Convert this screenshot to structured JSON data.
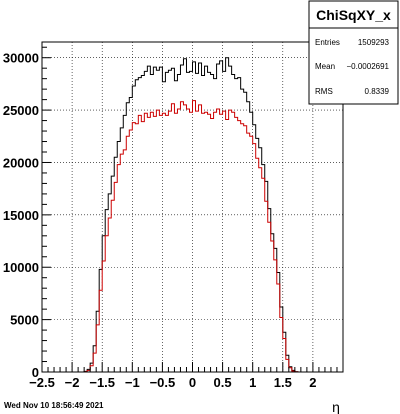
{
  "chart_data": {
    "type": "histogram",
    "xlim": [
      -2.5,
      2.5
    ],
    "ylim": [
      0,
      31500
    ],
    "x_ticks": [
      -2.5,
      -2,
      -1.5,
      -1,
      -0.5,
      0,
      0.5,
      1,
      1.5,
      2
    ],
    "x_tick_labels": [
      "−2.5",
      "−2",
      "−1.5",
      "−1",
      "−0.5",
      "0",
      "0.5",
      "1",
      "1.5",
      "2"
    ],
    "y_ticks": [
      0,
      5000,
      10000,
      15000,
      20000,
      25000,
      30000
    ],
    "y_tick_labels": [
      "0",
      "5000",
      "10000",
      "15000",
      "20000",
      "25000",
      "30000"
    ],
    "xlabel": "η",
    "ylabel": "",
    "grid": true,
    "bin_width": 0.05,
    "series": [
      {
        "color": "#000000",
        "x": [
          -2.475,
          -2.425,
          -2.375,
          -2.325,
          -2.275,
          -2.225,
          -2.175,
          -2.125,
          -2.075,
          -2.025,
          -1.975,
          -1.925,
          -1.875,
          -1.825,
          -1.775,
          -1.725,
          -1.675,
          -1.625,
          -1.575,
          -1.525,
          -1.475,
          -1.425,
          -1.375,
          -1.325,
          -1.275,
          -1.225,
          -1.175,
          -1.125,
          -1.075,
          -1.025,
          -0.975,
          -0.925,
          -0.875,
          -0.825,
          -0.775,
          -0.725,
          -0.675,
          -0.625,
          -0.575,
          -0.525,
          -0.475,
          -0.425,
          -0.375,
          -0.325,
          -0.275,
          -0.225,
          -0.175,
          -0.125,
          -0.075,
          -0.025,
          0.025,
          0.075,
          0.125,
          0.175,
          0.225,
          0.275,
          0.325,
          0.375,
          0.425,
          0.475,
          0.525,
          0.575,
          0.625,
          0.675,
          0.725,
          0.775,
          0.825,
          0.875,
          0.925,
          0.975,
          1.025,
          1.075,
          1.125,
          1.175,
          1.225,
          1.275,
          1.325,
          1.375,
          1.425,
          1.475,
          1.525,
          1.575,
          1.625,
          1.675,
          1.725,
          1.775,
          1.825,
          1.875,
          1.925,
          1.975,
          2.025,
          2.075,
          2.125,
          2.175,
          2.225,
          2.275,
          2.325,
          2.375,
          2.425,
          2.475
        ],
        "values": [
          0,
          0,
          0,
          0,
          0,
          0,
          0,
          0,
          0,
          0,
          0,
          0,
          0,
          0,
          60,
          250,
          850,
          2500,
          5800,
          9800,
          13000,
          15500,
          17000,
          18700,
          20500,
          22000,
          23300,
          24500,
          25700,
          26200,
          27300,
          27900,
          28100,
          28300,
          28700,
          29200,
          28400,
          29100,
          28800,
          29100,
          27700,
          28600,
          28800,
          29000,
          27800,
          28400,
          29300,
          29900,
          28600,
          28700,
          29600,
          28500,
          29500,
          28300,
          29200,
          28600,
          28400,
          28000,
          29400,
          29700,
          28700,
          30000,
          29200,
          28400,
          28000,
          28100,
          27000,
          26700,
          25800,
          24800,
          23600,
          22300,
          21400,
          19800,
          18200,
          15600,
          13200,
          11800,
          9500,
          6200,
          3800,
          1600,
          500,
          150,
          30,
          0,
          0,
          0,
          0,
          0,
          0,
          0,
          0,
          0,
          0,
          0,
          0,
          0,
          0,
          0
        ]
      },
      {
        "color": "#cc0000",
        "x": [
          -2.475,
          -2.425,
          -2.375,
          -2.325,
          -2.275,
          -2.225,
          -2.175,
          -2.125,
          -2.075,
          -2.025,
          -1.975,
          -1.925,
          -1.875,
          -1.825,
          -1.775,
          -1.725,
          -1.675,
          -1.625,
          -1.575,
          -1.525,
          -1.475,
          -1.425,
          -1.375,
          -1.325,
          -1.275,
          -1.225,
          -1.175,
          -1.125,
          -1.075,
          -1.025,
          -0.975,
          -0.925,
          -0.875,
          -0.825,
          -0.775,
          -0.725,
          -0.675,
          -0.625,
          -0.575,
          -0.525,
          -0.475,
          -0.425,
          -0.375,
          -0.325,
          -0.275,
          -0.225,
          -0.175,
          -0.125,
          -0.075,
          -0.025,
          0.025,
          0.075,
          0.125,
          0.175,
          0.225,
          0.275,
          0.325,
          0.375,
          0.425,
          0.475,
          0.525,
          0.575,
          0.625,
          0.675,
          0.725,
          0.775,
          0.825,
          0.875,
          0.925,
          0.975,
          1.025,
          1.075,
          1.125,
          1.175,
          1.225,
          1.275,
          1.325,
          1.375,
          1.425,
          1.475,
          1.525,
          1.575,
          1.625,
          1.675,
          1.725,
          1.775,
          1.825,
          1.875,
          1.925,
          1.975,
          2.025,
          2.075,
          2.125,
          2.175,
          2.225,
          2.275,
          2.325,
          2.375,
          2.425,
          2.475
        ],
        "values": [
          0,
          0,
          0,
          0,
          0,
          0,
          0,
          0,
          0,
          0,
          0,
          0,
          0,
          0,
          30,
          150,
          600,
          1800,
          4500,
          7800,
          10600,
          13000,
          14700,
          16400,
          18100,
          19800,
          20800,
          21200,
          22500,
          23100,
          23800,
          23700,
          24500,
          23900,
          24700,
          24300,
          24800,
          24400,
          25000,
          24500,
          24700,
          24500,
          24900,
          25600,
          24700,
          25100,
          25800,
          25500,
          25100,
          24800,
          25900,
          24900,
          25500,
          24700,
          24800,
          24600,
          24200,
          24800,
          25100,
          24600,
          24900,
          24100,
          25000,
          24800,
          24300,
          24000,
          23700,
          23500,
          22800,
          22500,
          21800,
          20400,
          19500,
          18500,
          16300,
          14300,
          12500,
          10700,
          8400,
          5200,
          3200,
          1200,
          400,
          100,
          20,
          0,
          0,
          0,
          0,
          0,
          0,
          0,
          0,
          0,
          0,
          0,
          0,
          0,
          0,
          0
        ]
      }
    ]
  },
  "stats": {
    "title": "ChiSqXY_x",
    "rows": [
      {
        "label": "Entries",
        "value": "1509293"
      },
      {
        "label": "Mean",
        "value": "−0.0002691"
      },
      {
        "label": "RMS",
        "value": "0.8339"
      }
    ]
  },
  "footer": {
    "date": "Wed Nov 10 18:56:49 2021"
  }
}
